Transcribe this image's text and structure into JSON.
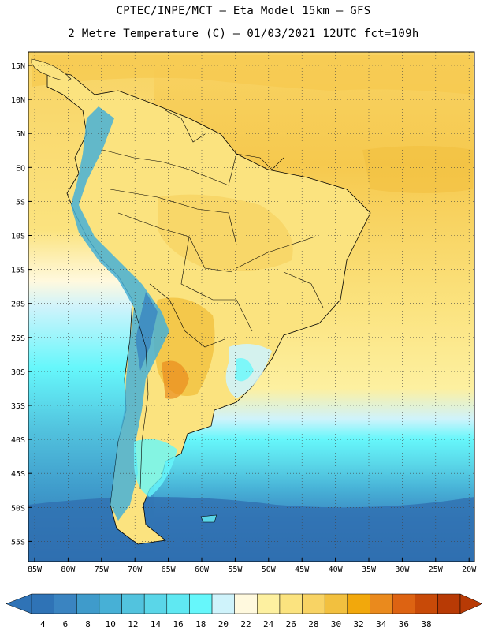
{
  "header": {
    "line1": "CPTEC/INPE/MCT –  Eta Model 15km – GFS",
    "line2": "2 Metre Temperature (C) – 01/03/2021 12UTC fct=109h"
  },
  "map": {
    "lat_labels": [
      "15N",
      "10N",
      "5N",
      "EQ",
      "5S",
      "10S",
      "15S",
      "20S",
      "25S",
      "30S",
      "35S",
      "40S",
      "45S",
      "50S",
      "55S"
    ],
    "lon_labels": [
      "85W",
      "80W",
      "75W",
      "70W",
      "65W",
      "60W",
      "55W",
      "50W",
      "45W",
      "40W",
      "35W",
      "30W",
      "25W",
      "20W"
    ]
  },
  "colorbar": {
    "labels": [
      "4",
      "6",
      "8",
      "10",
      "12",
      "14",
      "16",
      "18",
      "20",
      "22",
      "24",
      "26",
      "28",
      "30",
      "32",
      "34",
      "36",
      "38"
    ],
    "colors": [
      "#2f73b6",
      "#3a84c1",
      "#3f9bcb",
      "#47b0d6",
      "#52c3de",
      "#5ad6e8",
      "#5fe8f2",
      "#66f7fb",
      "#cff3fb",
      "#fff9de",
      "#fdf0a0",
      "#fbe37f",
      "#f8d364",
      "#f2c03f",
      "#f2a80c",
      "#ea8a1d",
      "#dd6312",
      "#c84a08",
      "#b83a05"
    ],
    "low_color": "#2f73b6",
    "high_color": "#b83a05"
  }
}
